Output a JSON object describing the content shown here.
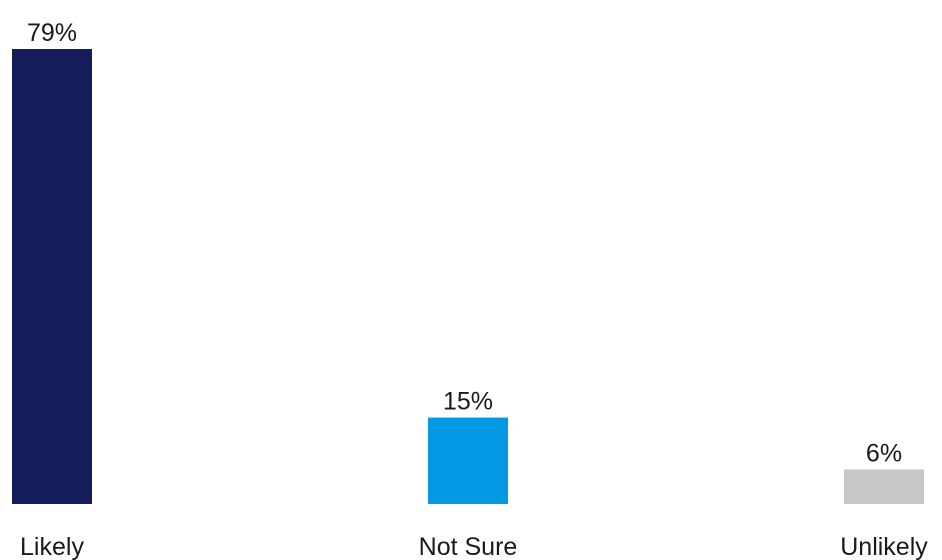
{
  "chart_data": {
    "type": "bar",
    "categories": [
      "Likely",
      "Not Sure",
      "Unlikely"
    ],
    "values": [
      79,
      15,
      6
    ],
    "value_labels": [
      "79%",
      "15%",
      "6%"
    ],
    "colors": [
      "#151c5a",
      "#0398e3",
      "#c8c8c8"
    ],
    "title": "",
    "xlabel": "",
    "ylabel": "",
    "ylim": [
      0,
      79
    ],
    "grid": false,
    "legend": "none"
  }
}
